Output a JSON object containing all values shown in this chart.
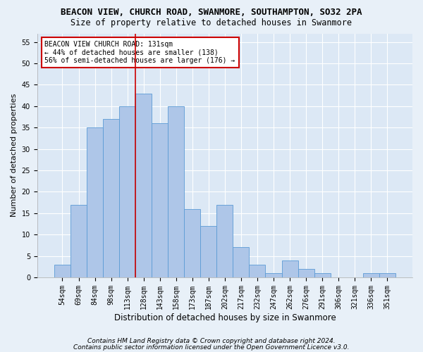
{
  "title1": "BEACON VIEW, CHURCH ROAD, SWANMORE, SOUTHAMPTON, SO32 2PA",
  "title2": "Size of property relative to detached houses in Swanmore",
  "xlabel": "Distribution of detached houses by size in Swanmore",
  "ylabel": "Number of detached properties",
  "footer1": "Contains HM Land Registry data © Crown copyright and database right 2024.",
  "footer2": "Contains public sector information licensed under the Open Government Licence v3.0.",
  "categories": [
    "54sqm",
    "69sqm",
    "84sqm",
    "98sqm",
    "113sqm",
    "128sqm",
    "143sqm",
    "158sqm",
    "173sqm",
    "187sqm",
    "202sqm",
    "217sqm",
    "232sqm",
    "247sqm",
    "262sqm",
    "276sqm",
    "291sqm",
    "306sqm",
    "321sqm",
    "336sqm",
    "351sqm"
  ],
  "values": [
    3,
    17,
    35,
    37,
    40,
    43,
    36,
    40,
    16,
    12,
    17,
    7,
    3,
    1,
    4,
    2,
    1,
    0,
    0,
    1,
    1
  ],
  "bar_color": "#aec6e8",
  "bar_edge_color": "#5b9bd5",
  "vline_index": 5,
  "vline_color": "#cc0000",
  "annotation_text": "BEACON VIEW CHURCH ROAD: 131sqm\n← 44% of detached houses are smaller (138)\n56% of semi-detached houses are larger (176) →",
  "annotation_box_color": "#ffffff",
  "annotation_box_edge_color": "#cc0000",
  "ylim": [
    0,
    57
  ],
  "yticks": [
    0,
    5,
    10,
    15,
    20,
    25,
    30,
    35,
    40,
    45,
    50,
    55
  ],
  "background_color": "#e8f0f8",
  "plot_bg_color": "#dce8f5",
  "grid_color": "#ffffff",
  "title1_fontsize": 9,
  "title2_fontsize": 8.5,
  "xlabel_fontsize": 8.5,
  "ylabel_fontsize": 8,
  "tick_fontsize": 7,
  "annotation_fontsize": 7,
  "footer_fontsize": 6.5
}
